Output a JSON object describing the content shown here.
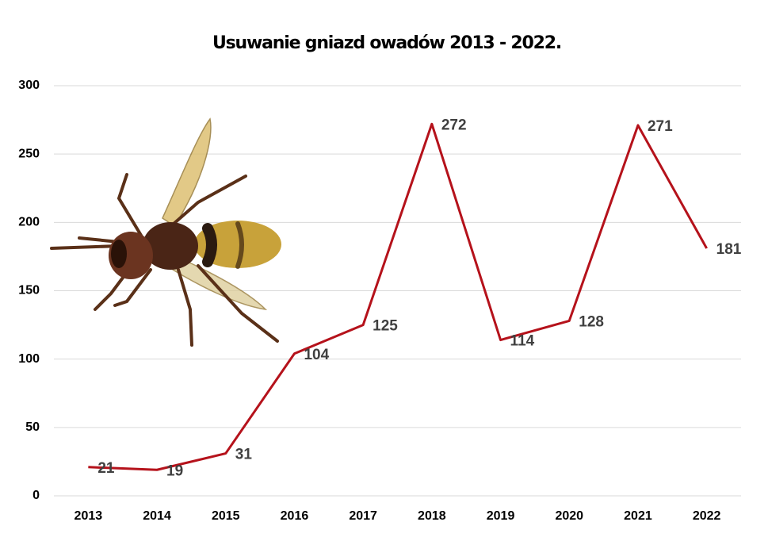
{
  "chart_data": {
    "type": "line",
    "title": "Usuwanie gniazd owadów 2013 - 2022.",
    "categories": [
      "2013",
      "2014",
      "2015",
      "2016",
      "2017",
      "2018",
      "2019",
      "2020",
      "2021",
      "2022"
    ],
    "values": [
      21,
      19,
      31,
      104,
      125,
      272,
      114,
      128,
      271,
      181
    ],
    "color": "#b5121b",
    "ylim": [
      0,
      300
    ],
    "yticks": [
      0,
      50,
      100,
      150,
      200,
      250,
      300
    ],
    "grid": true
  }
}
